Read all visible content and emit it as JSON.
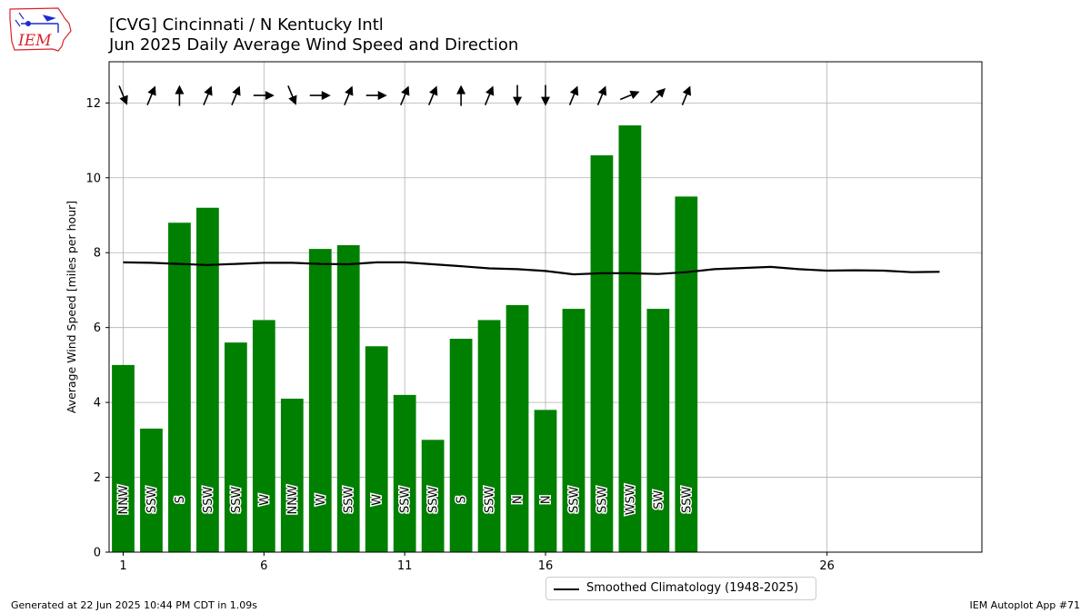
{
  "header": {
    "title_line1": "[CVG] Cincinnati / N Kentucky Intl",
    "title_line2": "Jun 2025 Daily Average Wind Speed and Direction",
    "logo_text": "IEM"
  },
  "footer": {
    "generated": "Generated at 22 Jun 2025 10:44 PM CDT in 1.09s",
    "app": "IEM Autoplot App #71"
  },
  "colors": {
    "bar": "#008000",
    "climatology": "#000000",
    "grid": "#b0b0b0",
    "arrow": "#000000",
    "logo_red": "#d9232a",
    "logo_blue": "#1f2bd0"
  },
  "chart_data": {
    "type": "bar",
    "ylabel": "Average Wind Speed [miles per hour]",
    "xlabel": "",
    "ylim": [
      0,
      13.1
    ],
    "xlim": [
      0.5,
      31.5
    ],
    "grid": true,
    "legend_placement": "bottom-center",
    "x_ticks": [
      1,
      6,
      11,
      16,
      26
    ],
    "y_ticks": [
      0,
      2,
      4,
      6,
      8,
      10,
      12
    ],
    "days": [
      1,
      2,
      3,
      4,
      5,
      6,
      7,
      8,
      9,
      10,
      11,
      12,
      13,
      14,
      15,
      16,
      17,
      18,
      19,
      20,
      21
    ],
    "series": [
      {
        "name": "",
        "values": [
          5.0,
          3.3,
          8.8,
          9.2,
          5.6,
          6.2,
          4.1,
          8.1,
          8.2,
          5.5,
          4.2,
          3.0,
          5.7,
          6.2,
          6.6,
          3.8,
          6.5,
          10.6,
          11.4,
          6.5,
          9.5
        ]
      },
      {
        "name": "Smoothed Climatology (1948-2025)",
        "x": [
          1,
          2,
          3,
          4,
          5,
          6,
          7,
          8,
          9,
          10,
          11,
          12,
          13,
          14,
          15,
          16,
          17,
          18,
          19,
          20,
          21,
          22,
          23,
          24,
          25,
          26,
          27,
          28,
          29,
          30
        ],
        "values": [
          7.74,
          7.73,
          7.7,
          7.67,
          7.7,
          7.73,
          7.73,
          7.7,
          7.69,
          7.74,
          7.74,
          7.69,
          7.64,
          7.58,
          7.56,
          7.51,
          7.42,
          7.45,
          7.45,
          7.43,
          7.48,
          7.56,
          7.59,
          7.62,
          7.56,
          7.52,
          7.53,
          7.52,
          7.48,
          7.49
        ]
      }
    ],
    "direction_labels": [
      "NNW",
      "SSW",
      "S",
      "SSW",
      "SSW",
      "W",
      "NNW",
      "W",
      "SSW",
      "W",
      "SSW",
      "SSW",
      "S",
      "SSW",
      "N",
      "N",
      "SSW",
      "SSW",
      "WSW",
      "SW",
      "SSW"
    ],
    "direction_degrees": [
      337.5,
      202.5,
      180,
      202.5,
      202.5,
      270,
      337.5,
      270,
      202.5,
      270,
      202.5,
      202.5,
      180,
      202.5,
      0,
      0,
      202.5,
      202.5,
      247.5,
      225,
      202.5
    ]
  }
}
